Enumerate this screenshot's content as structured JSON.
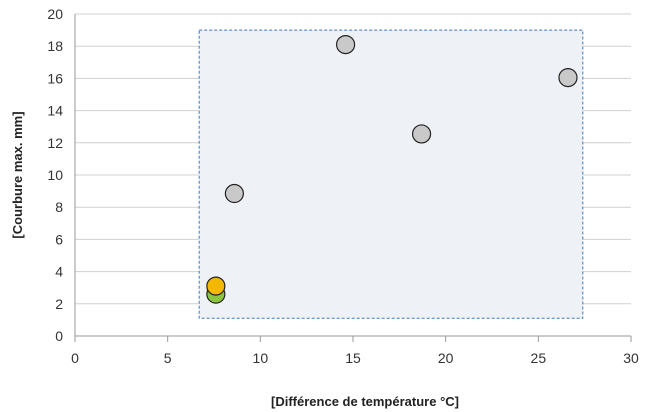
{
  "chart_data": {
    "type": "scatter",
    "xlabel": "[Différence de température °C]",
    "ylabel": "[Courbure max. mm]",
    "xlim": [
      0,
      30
    ],
    "ylim": [
      0,
      20
    ],
    "x_ticks": [
      0,
      5,
      10,
      15,
      20,
      25,
      30
    ],
    "y_ticks": [
      0,
      2,
      4,
      6,
      8,
      10,
      12,
      14,
      16,
      18,
      20
    ],
    "grid": "horizontal",
    "highlight_region": {
      "x_range": [
        6.7,
        27.4
      ],
      "y_range": [
        1.1,
        19.0
      ],
      "fill": "#eef2f7",
      "border": "#3d7ab8"
    },
    "points": [
      {
        "x": 8.6,
        "y": 8.85,
        "color": "#c9c9c9"
      },
      {
        "x": 14.6,
        "y": 18.1,
        "color": "#c9c9c9"
      },
      {
        "x": 18.7,
        "y": 12.55,
        "color": "#c9c9c9"
      },
      {
        "x": 26.6,
        "y": 16.05,
        "color": "#c9c9c9"
      },
      {
        "x": 7.6,
        "y": 2.6,
        "color": "#8cc63f"
      },
      {
        "x": 7.6,
        "y": 3.1,
        "color": "#f5b800"
      }
    ]
  }
}
